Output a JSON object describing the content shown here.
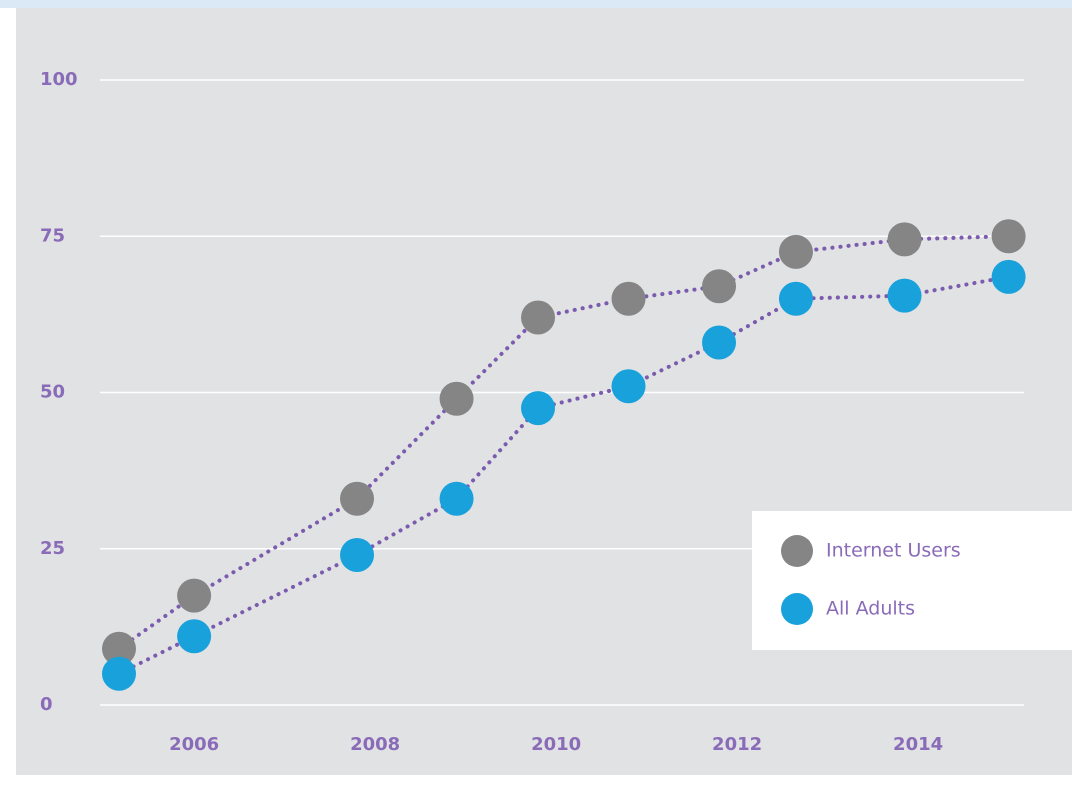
{
  "chart_data": {
    "type": "line",
    "x": [
      2005.17,
      2006.0,
      2007.8,
      2008.9,
      2009.8,
      2010.8,
      2011.8,
      2012.65,
      2013.85,
      2015.0
    ],
    "series": [
      {
        "name": "Internet Users",
        "color": "#858585",
        "values": [
          9,
          17.5,
          33,
          49,
          62,
          65,
          67,
          72.5,
          74.5,
          75
        ]
      },
      {
        "name": "All Adults",
        "color": "#19a1dc",
        "values": [
          5,
          11,
          24,
          33,
          47.5,
          51,
          58,
          65,
          65.5,
          68.5
        ]
      }
    ],
    "line_color": "#7b5bae",
    "xlim": [
      2004.96,
      2015.17
    ],
    "xticks": [
      2006,
      2008,
      2010,
      2012,
      2014
    ],
    "ylim": [
      0,
      100
    ],
    "yticks": [
      0,
      25,
      50,
      75,
      100
    ],
    "grid": true,
    "legend": "lower right"
  }
}
